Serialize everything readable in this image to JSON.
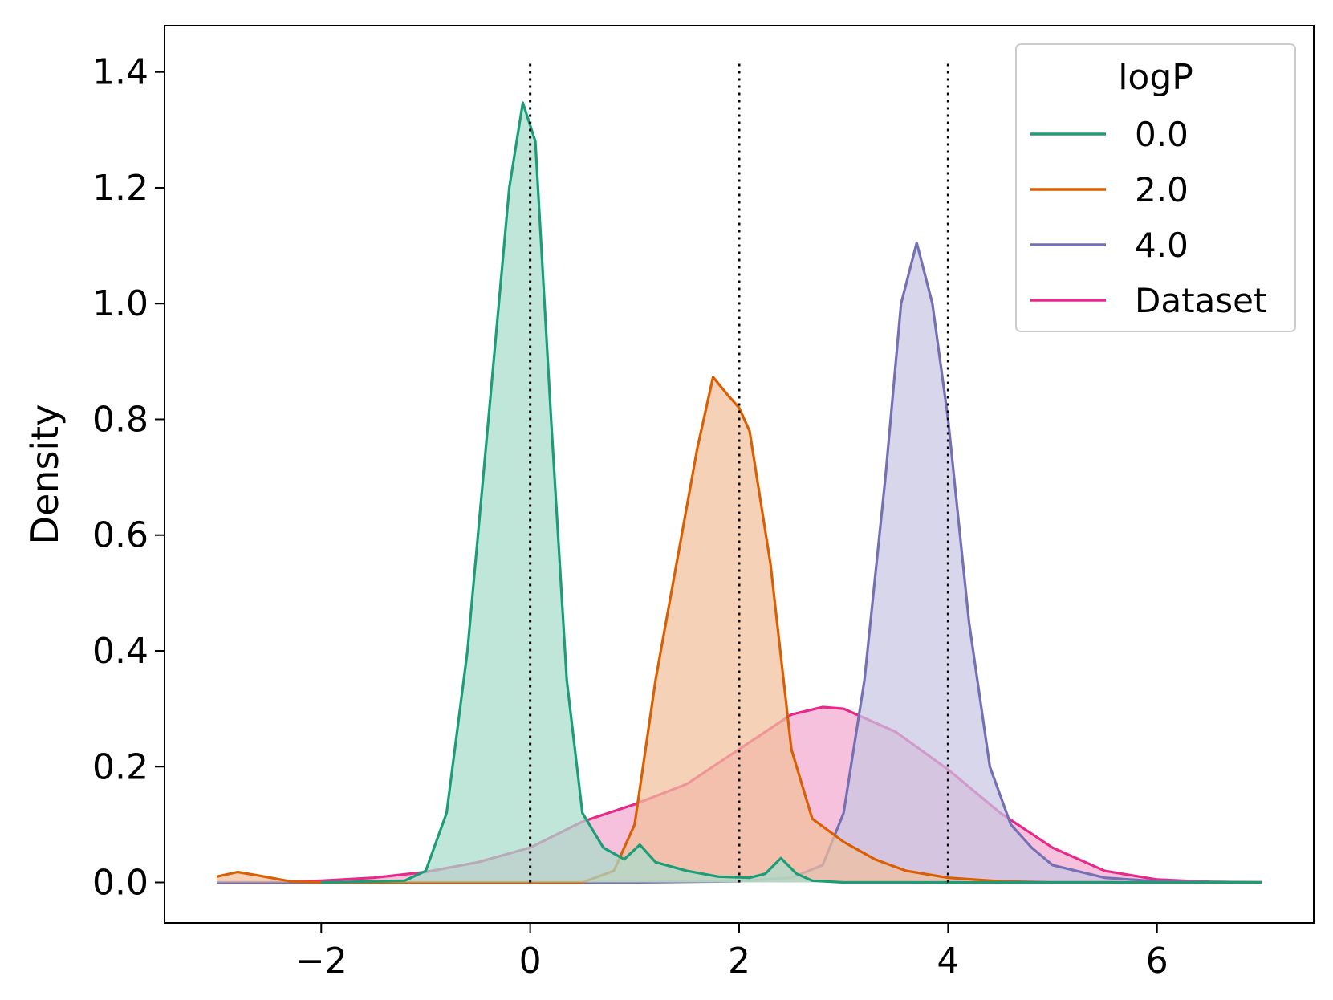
{
  "chart_data": {
    "type": "area",
    "title": "",
    "xlabel": "",
    "ylabel": "Density",
    "xlim": [
      -3.5,
      7.5
    ],
    "ylim": [
      -0.07,
      1.48
    ],
    "xticks": [
      -2,
      0,
      2,
      4,
      6
    ],
    "xtick_labels": [
      "−2",
      "0",
      "2",
      "4",
      "6"
    ],
    "yticks": [
      0.0,
      0.2,
      0.4,
      0.6,
      0.8,
      1.0,
      1.2,
      1.4
    ],
    "ytick_labels": [
      "0.0",
      "0.2",
      "0.4",
      "0.6",
      "0.8",
      "1.0",
      "1.2",
      "1.4"
    ],
    "grid": false,
    "legend": {
      "title": "logP",
      "placement": "top-right"
    },
    "reference_lines": {
      "style": "dotted",
      "color": "#000000",
      "x": [
        0,
        2,
        4
      ],
      "y_top": 1.42
    },
    "series": [
      {
        "name": "Dataset",
        "color": "#e7298a",
        "fill": "#f3a9cf",
        "points": [
          [
            -3.0,
            0.0
          ],
          [
            -2.5,
            0.0
          ],
          [
            -2.0,
            0.003
          ],
          [
            -1.5,
            0.008
          ],
          [
            -1.0,
            0.018
          ],
          [
            -0.5,
            0.035
          ],
          [
            0.0,
            0.06
          ],
          [
            0.5,
            0.105
          ],
          [
            1.0,
            0.135
          ],
          [
            1.5,
            0.17
          ],
          [
            2.0,
            0.23
          ],
          [
            2.5,
            0.29
          ],
          [
            2.8,
            0.303
          ],
          [
            3.0,
            0.3
          ],
          [
            3.5,
            0.26
          ],
          [
            4.0,
            0.195
          ],
          [
            4.5,
            0.12
          ],
          [
            5.0,
            0.06
          ],
          [
            5.5,
            0.02
          ],
          [
            6.0,
            0.005
          ],
          [
            6.5,
            0.001
          ],
          [
            7.0,
            0.0
          ]
        ]
      },
      {
        "name": "4.0",
        "color": "#7570b3",
        "fill": "#c7c6e3",
        "points": [
          [
            -3.0,
            0.0
          ],
          [
            1.0,
            0.0
          ],
          [
            2.0,
            0.002
          ],
          [
            2.5,
            0.008
          ],
          [
            2.8,
            0.03
          ],
          [
            3.0,
            0.12
          ],
          [
            3.2,
            0.35
          ],
          [
            3.4,
            0.7
          ],
          [
            3.55,
            1.0
          ],
          [
            3.7,
            1.105
          ],
          [
            3.85,
            1.0
          ],
          [
            4.0,
            0.8
          ],
          [
            4.2,
            0.45
          ],
          [
            4.4,
            0.2
          ],
          [
            4.6,
            0.1
          ],
          [
            4.8,
            0.06
          ],
          [
            5.0,
            0.03
          ],
          [
            5.5,
            0.008
          ],
          [
            6.0,
            0.002
          ],
          [
            7.0,
            0.0
          ]
        ]
      },
      {
        "name": "2.0",
        "color": "#d95f02",
        "fill": "#f1bf9c",
        "points": [
          [
            -3.0,
            0.01
          ],
          [
            -2.8,
            0.018
          ],
          [
            -2.6,
            0.012
          ],
          [
            -2.3,
            0.002
          ],
          [
            -2.0,
            0.0
          ],
          [
            0.5,
            0.0
          ],
          [
            0.8,
            0.02
          ],
          [
            1.0,
            0.1
          ],
          [
            1.2,
            0.35
          ],
          [
            1.4,
            0.55
          ],
          [
            1.6,
            0.75
          ],
          [
            1.75,
            0.873
          ],
          [
            1.9,
            0.84
          ],
          [
            2.0,
            0.82
          ],
          [
            2.1,
            0.78
          ],
          [
            2.3,
            0.55
          ],
          [
            2.5,
            0.23
          ],
          [
            2.7,
            0.11
          ],
          [
            3.0,
            0.07
          ],
          [
            3.3,
            0.04
          ],
          [
            3.6,
            0.02
          ],
          [
            4.0,
            0.008
          ],
          [
            4.5,
            0.002
          ],
          [
            5.0,
            0.0
          ],
          [
            7.0,
            0.0
          ]
        ]
      },
      {
        "name": "0.0",
        "color": "#1b9e77",
        "fill": "#a7dccb",
        "points": [
          [
            -2.0,
            0.0
          ],
          [
            -1.2,
            0.003
          ],
          [
            -1.0,
            0.02
          ],
          [
            -0.8,
            0.12
          ],
          [
            -0.6,
            0.4
          ],
          [
            -0.4,
            0.8
          ],
          [
            -0.2,
            1.2
          ],
          [
            -0.07,
            1.347
          ],
          [
            0.05,
            1.28
          ],
          [
            0.2,
            0.8
          ],
          [
            0.35,
            0.35
          ],
          [
            0.5,
            0.12
          ],
          [
            0.7,
            0.06
          ],
          [
            0.9,
            0.04
          ],
          [
            1.05,
            0.065
          ],
          [
            1.2,
            0.035
          ],
          [
            1.5,
            0.02
          ],
          [
            1.8,
            0.01
          ],
          [
            2.1,
            0.008
          ],
          [
            2.25,
            0.015
          ],
          [
            2.4,
            0.042
          ],
          [
            2.55,
            0.015
          ],
          [
            2.7,
            0.003
          ],
          [
            3.0,
            0.0
          ],
          [
            7.0,
            0.0
          ]
        ]
      }
    ]
  }
}
